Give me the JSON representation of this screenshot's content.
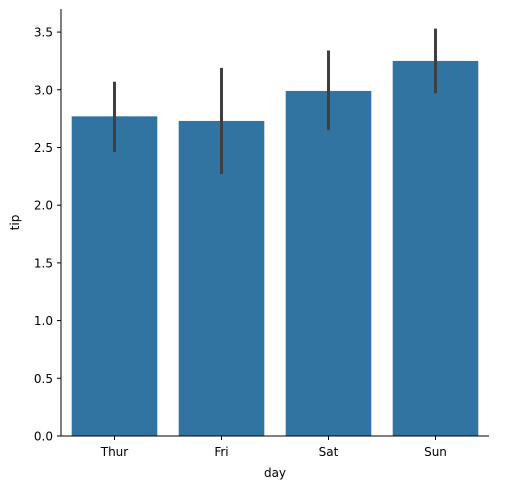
{
  "chart_data": {
    "type": "bar",
    "categories": [
      "Thur",
      "Fri",
      "Sat",
      "Sun"
    ],
    "values": [
      2.77,
      2.73,
      2.99,
      3.25
    ],
    "errors": [
      {
        "low": 2.46,
        "high": 3.07
      },
      {
        "low": 2.27,
        "high": 3.19
      },
      {
        "low": 2.65,
        "high": 3.34
      },
      {
        "low": 2.97,
        "high": 3.53
      }
    ],
    "xlabel": "day",
    "ylabel": "tip",
    "ylim": [
      0,
      3.7
    ],
    "yticks": [
      "0.0",
      "0.5",
      "1.0",
      "1.5",
      "2.0",
      "2.5",
      "3.0",
      "3.5"
    ],
    "grid": false,
    "bar_color": "#3274a1",
    "error_color": "#3f3f3f",
    "axis_color": "#000000"
  }
}
